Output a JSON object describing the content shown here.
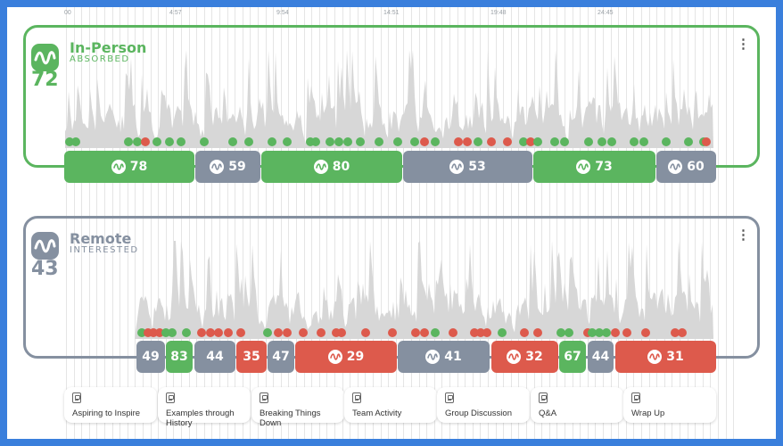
{
  "timeline": {
    "ticks": [
      "00",
      "4:57",
      "9:54",
      "14:51",
      "19:48",
      "24:45"
    ]
  },
  "colors": {
    "green": "#5bb55f",
    "gray": "#8590a0",
    "red": "#dd5a4c",
    "wave": "#d7d7d7"
  },
  "panels": [
    {
      "title": "In-Person",
      "subtitle": "ABSORBED",
      "score": "72",
      "color": "green",
      "menu_icon": "kebab-menu-icon",
      "segments": [
        {
          "value": "78",
          "color": "green"
        },
        {
          "value": "59",
          "color": "gray"
        },
        {
          "value": "80",
          "color": "green"
        },
        {
          "value": "53",
          "color": "gray"
        },
        {
          "value": "73",
          "color": "green"
        },
        {
          "value": "60",
          "color": "gray"
        }
      ]
    },
    {
      "title": "Remote",
      "subtitle": "INTERESTED",
      "score": "43",
      "color": "gray",
      "menu_icon": "kebab-menu-icon",
      "segments": [
        {
          "value": "49",
          "color": "gray"
        },
        {
          "value": "83",
          "color": "green"
        },
        {
          "value": "44",
          "color": "gray"
        },
        {
          "value": "35",
          "color": "red"
        },
        {
          "value": "47",
          "color": "gray"
        },
        {
          "value": "29",
          "color": "red"
        },
        {
          "value": "41",
          "color": "gray"
        },
        {
          "value": "32",
          "color": "red"
        },
        {
          "value": "67",
          "color": "green"
        },
        {
          "value": "44",
          "color": "gray"
        },
        {
          "value": "31",
          "color": "red"
        }
      ]
    }
  ],
  "sections": [
    {
      "label": "Aspiring to Inspire",
      "icon": "slide-icon"
    },
    {
      "label": "Examples through History",
      "icon": "slide-icon"
    },
    {
      "label": "Breaking Things Down",
      "icon": "slide-icon"
    },
    {
      "label": "Team Activity",
      "icon": "slide-icon"
    },
    {
      "label": "Group Discussion",
      "icon": "slide-icon"
    },
    {
      "label": "Q&A",
      "icon": "slide-icon"
    },
    {
      "label": "Wrap Up",
      "icon": "slide-icon"
    }
  ]
}
